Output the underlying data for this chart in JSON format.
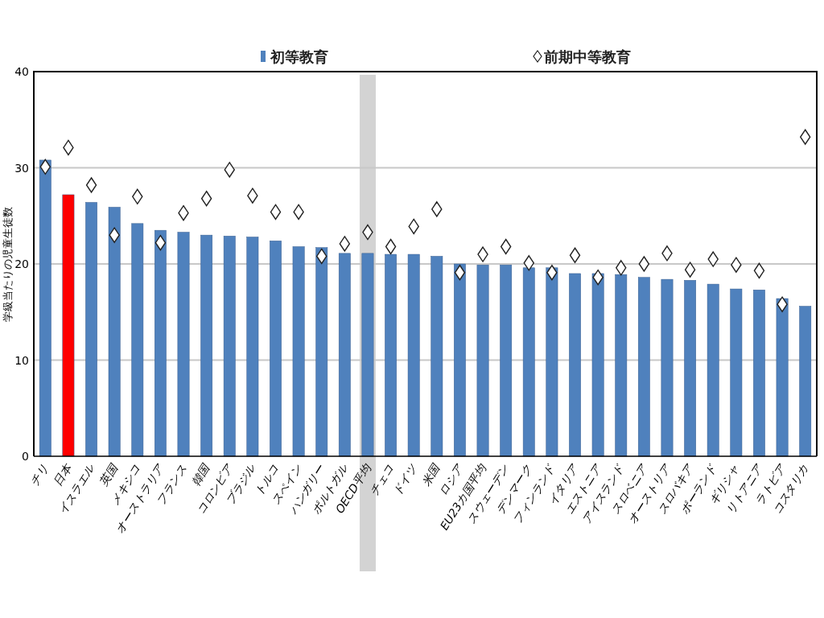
{
  "chart_data": {
    "type": "bar",
    "ylabel": "学級当たりの児童生徒数",
    "categories": [
      "チリ",
      "日本",
      "イスラエル",
      "英国",
      "メキシコ",
      "オーストラリア",
      "フランス",
      "韓国",
      "コロンビア",
      "ブラジル",
      "トルコ",
      "スペイン",
      "ハンガリー",
      "ポルトガル",
      "OECD平均",
      "チェコ",
      "ドイツ",
      "米国",
      "ロシア",
      "EU23カ国平均",
      "スウェーデン",
      "デンマーク",
      "フィンランド",
      "イタリア",
      "エストニア",
      "アイスランド",
      "スロベニア",
      "オーストリア",
      "スロバキア",
      "ポーランド",
      "ギリシャ",
      "リトアニア",
      "ラトビア",
      "コスタリカ"
    ],
    "series": [
      {
        "name": "初等教育",
        "type": "bar",
        "color": "#4f81bd",
        "colors": [
          "#4f81bd",
          "#ff0000",
          "#4f81bd",
          "#4f81bd",
          "#4f81bd",
          "#4f81bd",
          "#4f81bd",
          "#4f81bd",
          "#4f81bd",
          "#4f81bd",
          "#4f81bd",
          "#4f81bd",
          "#4f81bd",
          "#4f81bd",
          "#4f81bd",
          "#4f81bd",
          "#4f81bd",
          "#4f81bd",
          "#4f81bd",
          "#4f81bd",
          "#4f81bd",
          "#4f81bd",
          "#4f81bd",
          "#4f81bd",
          "#4f81bd",
          "#4f81bd",
          "#4f81bd",
          "#4f81bd",
          "#4f81bd",
          "#4f81bd",
          "#4f81bd",
          "#4f81bd",
          "#4f81bd",
          "#4f81bd"
        ],
        "values": [
          30.8,
          27.2,
          26.4,
          25.9,
          24.2,
          23.5,
          23.3,
          23.0,
          22.9,
          22.8,
          22.4,
          21.8,
          21.7,
          21.1,
          21.1,
          21.0,
          21.0,
          20.8,
          20.0,
          19.9,
          19.9,
          19.6,
          19.6,
          19.0,
          19.0,
          18.9,
          18.6,
          18.4,
          18.3,
          17.9,
          17.4,
          17.3,
          16.4,
          15.6
        ]
      },
      {
        "name": "前期中等教育",
        "type": "scatter",
        "color": "#ffffff",
        "values": [
          30.1,
          32.1,
          28.2,
          23.0,
          27.0,
          22.2,
          25.3,
          26.8,
          29.8,
          27.1,
          25.4,
          25.4,
          20.8,
          22.1,
          23.3,
          21.8,
          23.9,
          25.7,
          19.1,
          21.0,
          21.8,
          20.1,
          19.1,
          20.9,
          18.6,
          19.6,
          20.0,
          21.1,
          19.4,
          20.5,
          19.9,
          19.3,
          15.8,
          33.2
        ]
      }
    ],
    "ylim": [
      0,
      40
    ],
    "yticks": [
      0,
      10,
      20,
      30,
      40
    ],
    "grid": "y",
    "legend": "top",
    "marker": "diamond",
    "bands": [
      {
        "axis": "x",
        "from": "OECD平均",
        "to": "OECD平均",
        "color": "#d3d3d3"
      }
    ]
  }
}
